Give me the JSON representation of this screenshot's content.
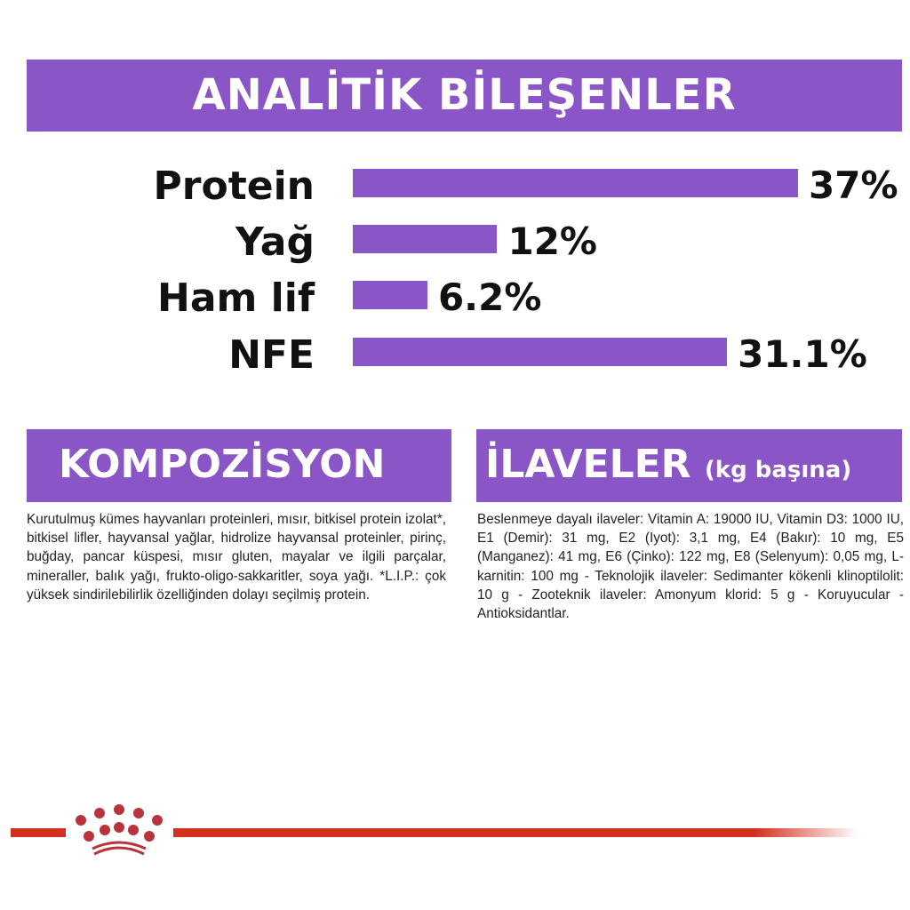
{
  "header": {
    "title": "ANALİTİK BİLEŞENLER"
  },
  "analysis": {
    "max_percent": 37,
    "items": [
      {
        "label": "Protein",
        "value": "37%",
        "percent": 37
      },
      {
        "label": "Yağ",
        "value": "12%",
        "percent": 12
      },
      {
        "label": "Ham lif",
        "value": "6.2%",
        "percent": 6.2
      },
      {
        "label": "NFE",
        "value": "31.1%",
        "percent": 31.1
      }
    ]
  },
  "composition": {
    "title": "KOMPOZİSYON",
    "text": "Kurutulmuş kümes hayvanları proteinleri, mısır, bitkisel protein izolat*, bitkisel lifler, hayvansal yağlar, hidrolize hayvansal proteinler, pirinç, buğday, pancar küspesi, mısır gluten, mayalar ve ilgili parçalar, mineraller, balık yağı, frukto-oligo-sakkaritler, soya yağı. *L.I.P.: çok yüksek sindirilebilirlik özelliğinden dolayı seçilmiş protein."
  },
  "additives": {
    "title": "İLAVELER",
    "subtitle": "(kg başına)",
    "text": "Beslenmeye dayalı ilaveler: Vitamin A: 19000 IU, Vitamin D3: 1000 IU, E1 (Demir): 31 mg, E2 (Iyot): 3,1 mg, E4 (Bakır): 10 mg, E5 (Manganez): 41 mg, E6 (Çinko): 122 mg, E8 (Selenyum): 0,05 mg, L-karnitin: 100 mg - Teknolojik ilaveler: Sedimanter kökenli klinoptilolit: 10 g - Zooteknik ilaveler: Amonyum klorid: 5 g - Koruyucular - Antioksidantlar."
  },
  "colors": {
    "accent": "#8a55c6",
    "brand_red": "#d2311f"
  },
  "logo": {
    "icon": "royal-canin-crown-icon"
  }
}
